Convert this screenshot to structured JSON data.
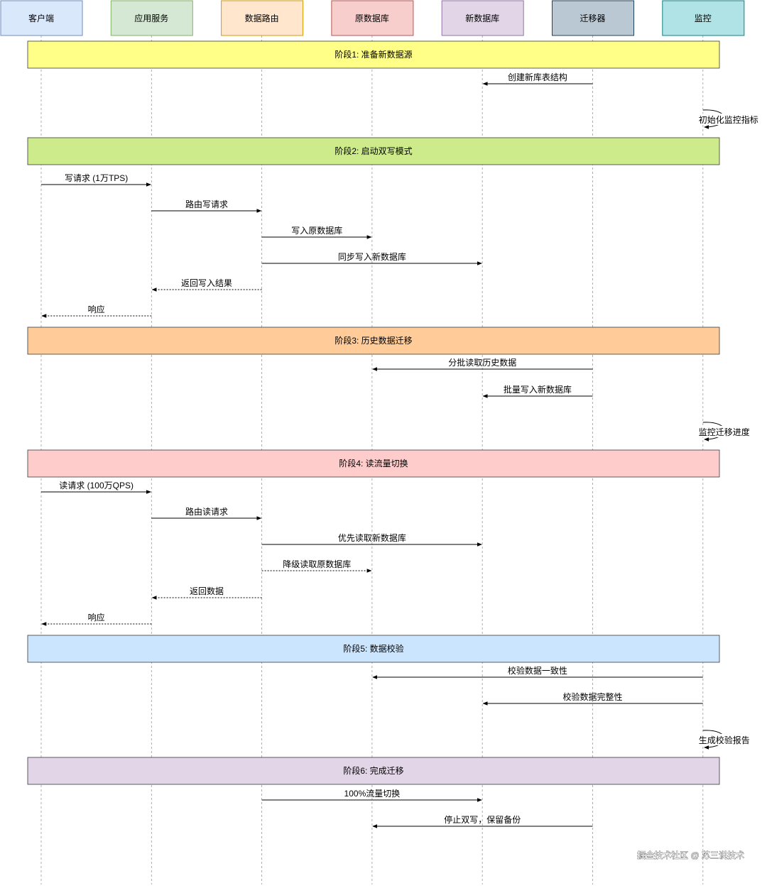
{
  "participants": [
    {
      "name": "客户端",
      "fill": "#dae8fc",
      "stroke": "#6c8ebf"
    },
    {
      "name": "应用服务",
      "fill": "#d5e8d4",
      "stroke": "#82b366"
    },
    {
      "name": "数据路由",
      "fill": "#ffe6cc",
      "stroke": "#d79b00"
    },
    {
      "name": "原数据库",
      "fill": "#f8cecc",
      "stroke": "#b85450"
    },
    {
      "name": "新数据库",
      "fill": "#e1d5e7",
      "stroke": "#9673a6"
    },
    {
      "name": "迁移器",
      "fill": "#bac8d3",
      "stroke": "#23445d"
    },
    {
      "name": "监控",
      "fill": "#b0e3e6",
      "stroke": "#0e8088"
    }
  ],
  "phases": [
    {
      "label": "阶段1: 准备新数据源",
      "fill": "#ffff88"
    },
    {
      "label": "阶段2: 启动双写模式",
      "fill": "#cdeb8b"
    },
    {
      "label": "阶段3: 历史数据迁移",
      "fill": "#ffcc99"
    },
    {
      "label": "阶段4: 读流量切换",
      "fill": "#ffcccc"
    },
    {
      "label": "阶段5: 数据校验",
      "fill": "#cce5ff"
    },
    {
      "label": "阶段6: 完成迁移",
      "fill": "#e1d5e7"
    }
  ],
  "messages": [
    {
      "from": 5,
      "to": 4,
      "label": "创建新库表结构",
      "dashed": false
    },
    {
      "from": 6,
      "to": 6,
      "label": "初始化监控指标",
      "dashed": false
    },
    {
      "from": 0,
      "to": 1,
      "label": "写请求 (1万TPS)",
      "dashed": false
    },
    {
      "from": 1,
      "to": 2,
      "label": "路由写请求",
      "dashed": false
    },
    {
      "from": 2,
      "to": 3,
      "label": "写入原数据库",
      "dashed": false
    },
    {
      "from": 2,
      "to": 4,
      "label": "同步写入新数据库",
      "dashed": false
    },
    {
      "from": 2,
      "to": 1,
      "label": "返回写入结果",
      "dashed": true
    },
    {
      "from": 1,
      "to": 0,
      "label": "响应",
      "dashed": true
    },
    {
      "from": 5,
      "to": 3,
      "label": "分批读取历史数据",
      "dashed": false
    },
    {
      "from": 5,
      "to": 4,
      "label": "批量写入新数据库",
      "dashed": false
    },
    {
      "from": 6,
      "to": 6,
      "label": "监控迁移进度",
      "dashed": false
    },
    {
      "from": 0,
      "to": 1,
      "label": "读请求 (100万QPS)",
      "dashed": false
    },
    {
      "from": 1,
      "to": 2,
      "label": "路由读请求",
      "dashed": false
    },
    {
      "from": 2,
      "to": 4,
      "label": "优先读取新数据库",
      "dashed": false
    },
    {
      "from": 2,
      "to": 3,
      "label": "降级读取原数据库",
      "dashed": true
    },
    {
      "from": 2,
      "to": 1,
      "label": "返回数据",
      "dashed": true
    },
    {
      "from": 1,
      "to": 0,
      "label": "响应",
      "dashed": true
    },
    {
      "from": 6,
      "to": 3,
      "label": "校验数据一致性",
      "dashed": false
    },
    {
      "from": 6,
      "to": 4,
      "label": "校验数据完整性",
      "dashed": false
    },
    {
      "from": 6,
      "to": 6,
      "label": "生成校验报告",
      "dashed": false
    },
    {
      "from": 2,
      "to": 4,
      "label": "100%流量切换",
      "dashed": false
    },
    {
      "from": 5,
      "to": 3,
      "label": "停止双写，保留备份",
      "dashed": false
    }
  ],
  "watermark": "掘金技术社区 @ 苏三说技术"
}
